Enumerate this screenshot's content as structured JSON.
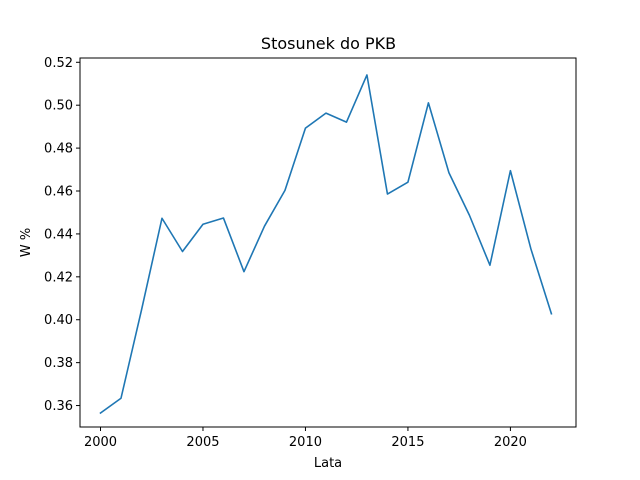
{
  "chart_data": {
    "type": "line",
    "title": "Stosunek do PKB",
    "xlabel": "Lata",
    "ylabel": "W %",
    "xlim": [
      1999,
      2023.2
    ],
    "ylim": [
      0.35,
      0.522
    ],
    "x_ticks": [
      2000,
      2005,
      2010,
      2015,
      2020
    ],
    "x_tick_labels": [
      "2000",
      "2005",
      "2010",
      "2015",
      "2020"
    ],
    "y_ticks": [
      0.36,
      0.38,
      0.4,
      0.42,
      0.44,
      0.46,
      0.48,
      0.5,
      0.52
    ],
    "y_tick_labels": [
      "0.36",
      "0.38",
      "0.40",
      "0.42",
      "0.44",
      "0.46",
      "0.48",
      "0.50",
      "0.52"
    ],
    "grid": false,
    "legend": "none",
    "series": [
      {
        "color": "#1f77b4",
        "x": [
          2000,
          2001,
          2002,
          2003,
          2004,
          2005,
          2006,
          2007,
          2008,
          2009,
          2010,
          2011,
          2012,
          2013,
          2014,
          2015,
          2016,
          2017,
          2018,
          2019,
          2020,
          2021,
          2022
        ],
        "y": [
          0.3565,
          0.3634,
          0.4045,
          0.4473,
          0.4318,
          0.4445,
          0.4474,
          0.4224,
          0.4436,
          0.4603,
          0.4893,
          0.4963,
          0.4921,
          0.5141,
          0.4586,
          0.4641,
          0.5011,
          0.4685,
          0.4487,
          0.4254,
          0.4695,
          0.433,
          0.4028
        ]
      }
    ]
  }
}
